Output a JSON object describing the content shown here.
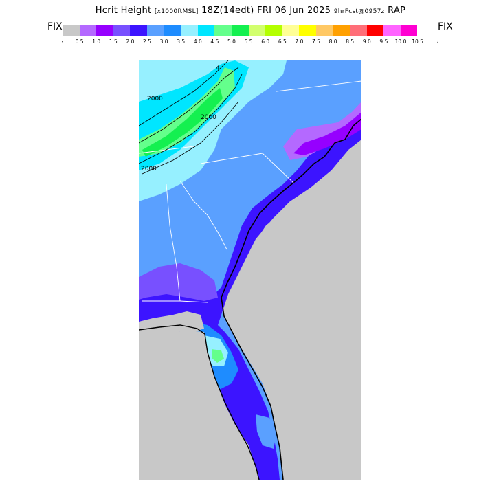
{
  "title": {
    "field": "Hcrit Height",
    "units": "[x1000ftMSL]",
    "valid": "18Z(14edt) FRI 06 Jun 2025",
    "forecast": "9hrFcst@0957z",
    "model": "RAP"
  },
  "legend": {
    "left_label": "FIX",
    "right_label": "FIX",
    "under_arrow": "‹",
    "over_arrow": "›",
    "colors": [
      "#c8c8c8",
      "#b469ff",
      "#9600ff",
      "#7850ff",
      "#3c14ff",
      "#5aa0ff",
      "#1e8cff",
      "#96f0ff",
      "#00e6ff",
      "#64ff8c",
      "#14f050",
      "#d2ff6e",
      "#b4ff00",
      "#ffff96",
      "#ffff00",
      "#ffc864",
      "#ffa000",
      "#ff6e78",
      "#ff0000",
      "#ff64ff",
      "#ff00d2"
    ],
    "ticks": [
      "0.5",
      "1.0",
      "1.5",
      "2.0",
      "2.5",
      "3.0",
      "3.5",
      "4.0",
      "4.5",
      "5.0",
      "5.5",
      "6.0",
      "6.5",
      "7.0",
      "7.5",
      "8.0",
      "8.5",
      "9.0",
      "9.5",
      "10.0",
      "10.5"
    ]
  },
  "map": {
    "contour_labels": [
      "2000",
      "2000",
      "2000",
      "4"
    ],
    "water_color": "#c8c8c8",
    "border_color": "#000000",
    "state_line_color": "#ffffff"
  }
}
